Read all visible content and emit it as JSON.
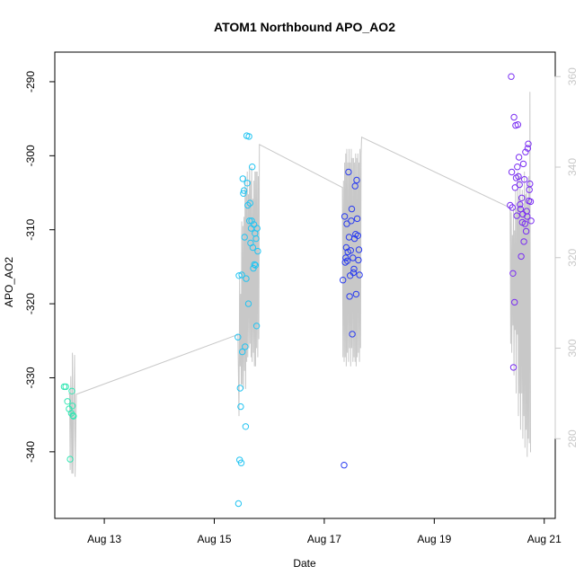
{
  "chart_data": {
    "type": "scatter",
    "title": "ATOM1 Northbound APO_AO2",
    "xlabel": "Date",
    "ylabel": "APO_AO2",
    "x_tick_labels": [
      "Aug 13",
      "Aug 15",
      "Aug 17",
      "Aug 19",
      "Aug 21"
    ],
    "x_tick_days": [
      13,
      15,
      17,
      19,
      21
    ],
    "xlim": [
      12.1,
      21.2
    ],
    "ylim": [
      -349.0,
      -286.0
    ],
    "y_ticks": [
      -340,
      -330,
      -320,
      -310,
      -300,
      -290
    ],
    "y2_label": "",
    "y2_ticks": [
      280,
      300,
      320,
      340,
      360
    ],
    "y2lim": [
      262.4,
      365.4
    ],
    "grid": false,
    "legend": "none",
    "colors": {
      "points": [
        "#33e6b3",
        "#22c4f2",
        "#2a3cf0",
        "#7a2ef2"
      ],
      "secondary_line": "#c8c8c8",
      "axis": "#000000",
      "right_axis": "#c8c8c8"
    },
    "series": [
      {
        "type": "scatter",
        "color_index": 0,
        "x": [
          12.27,
          12.3,
          12.33,
          12.36,
          12.38,
          12.4,
          12.41,
          12.42,
          12.43,
          12.44
        ],
        "y": [
          -331.2,
          -331.2,
          -333.2,
          -334.2,
          -341.0,
          -334.8,
          -331.8,
          -333.8,
          -335.1,
          -335.2
        ]
      },
      {
        "type": "scatter",
        "color_index": 1,
        "x": [
          15.43,
          15.44,
          15.45,
          15.46,
          15.47,
          15.48,
          15.49,
          15.5,
          15.51,
          15.52,
          15.53,
          15.54,
          15.55,
          15.56,
          15.57,
          15.58,
          15.59,
          15.6,
          15.61,
          15.62,
          15.63,
          15.64,
          15.65,
          15.66,
          15.67,
          15.68,
          15.69,
          15.7,
          15.71,
          15.72,
          15.73,
          15.74,
          15.75,
          15.76,
          15.77,
          15.78,
          15.79
        ],
        "y": [
          -324.5,
          -347.0,
          -316.2,
          -341.1,
          -331.4,
          -333.9,
          -341.5,
          -316.1,
          -326.5,
          -303.1,
          -305.1,
          -304.7,
          -311.0,
          -325.8,
          -336.6,
          -316.6,
          -297.3,
          -303.7,
          -306.7,
          -320.0,
          -297.4,
          -308.8,
          -306.4,
          -311.8,
          -309.8,
          -308.8,
          -301.5,
          -312.4,
          -315.2,
          -309.3,
          -314.7,
          -310.5,
          -314.8,
          -311.2,
          -323.0,
          -309.8,
          -312.9
        ]
      },
      {
        "type": "scatter",
        "color_index": 2,
        "x": [
          17.34,
          17.36,
          17.37,
          17.38,
          17.39,
          17.4,
          17.41,
          17.42,
          17.43,
          17.44,
          17.45,
          17.46,
          17.47,
          17.48,
          17.49,
          17.5,
          17.51,
          17.52,
          17.53,
          17.54,
          17.55,
          17.56,
          17.57,
          17.58,
          17.59,
          17.6,
          17.61,
          17.62,
          17.63,
          17.64
        ],
        "y": [
          -316.8,
          -341.8,
          -308.2,
          -314.4,
          -313.8,
          -312.4,
          -309.2,
          -314.2,
          -313.0,
          -302.2,
          -311.0,
          -319.0,
          -316.2,
          -312.8,
          -308.8,
          -307.2,
          -324.1,
          -313.8,
          -315.8,
          -315.3,
          -311.2,
          -304.1,
          -310.6,
          -318.7,
          -303.3,
          -308.5,
          -310.8,
          -314.1,
          -312.7,
          -316.1
        ]
      },
      {
        "type": "scatter",
        "color_index": 3,
        "x": [
          20.38,
          20.4,
          20.41,
          20.42,
          20.43,
          20.44,
          20.45,
          20.46,
          20.47,
          20.48,
          20.49,
          20.5,
          20.51,
          20.52,
          20.53,
          20.54,
          20.55,
          20.56,
          20.57,
          20.58,
          20.59,
          20.6,
          20.61,
          20.62,
          20.63,
          20.64,
          20.65,
          20.66,
          20.67,
          20.68,
          20.69,
          20.7,
          20.71,
          20.72,
          20.73,
          20.74,
          20.75,
          20.76
        ],
        "y": [
          -306.7,
          -289.3,
          -302.2,
          -307.0,
          -315.9,
          -328.6,
          -294.8,
          -319.8,
          -304.3,
          -295.9,
          -303.0,
          -308.1,
          -301.5,
          -295.8,
          -302.8,
          -300.2,
          -303.9,
          -306.6,
          -307.2,
          -313.6,
          -305.7,
          -309.0,
          -307.9,
          -301.1,
          -311.6,
          -303.2,
          -309.2,
          -299.5,
          -310.2,
          -307.5,
          -308.2,
          -299.0,
          -298.4,
          -306.1,
          -304.6,
          -303.8,
          -306.2,
          -308.8
        ]
      }
    ],
    "secondary_axis_series": {
      "type": "line",
      "x": [
        12.35,
        12.37,
        12.38,
        12.39,
        12.4,
        12.41,
        12.42,
        12.43,
        12.45,
        12.46,
        12.47,
        12.49,
        15.43,
        15.45,
        15.46,
        15.47,
        15.48,
        15.49,
        15.5,
        15.51,
        15.52,
        15.53,
        15.54,
        15.55,
        15.56,
        15.57,
        15.58,
        15.59,
        15.6,
        15.61,
        15.62,
        15.63,
        15.64,
        15.65,
        15.66,
        15.67,
        15.68,
        15.69,
        15.7,
        15.71,
        15.72,
        15.73,
        15.74,
        15.75,
        15.76,
        15.77,
        15.78,
        15.79,
        15.8,
        15.81,
        15.82,
        17.33,
        17.34,
        17.35,
        17.36,
        17.37,
        17.38,
        17.39,
        17.4,
        17.41,
        17.42,
        17.43,
        17.44,
        17.45,
        17.46,
        17.47,
        17.48,
        17.49,
        17.5,
        17.51,
        17.52,
        17.53,
        17.54,
        17.55,
        17.56,
        17.57,
        17.58,
        17.59,
        17.6,
        17.61,
        17.62,
        17.63,
        17.64,
        17.65,
        17.66,
        17.67,
        17.68,
        20.38,
        20.39,
        20.4,
        20.41,
        20.42,
        20.43,
        20.44,
        20.45,
        20.46,
        20.47,
        20.48,
        20.49,
        20.5,
        20.51,
        20.52,
        20.53,
        20.54,
        20.55,
        20.56,
        20.57,
        20.58,
        20.59,
        20.6,
        20.61,
        20.62,
        20.63,
        20.64,
        20.65,
        20.66,
        20.67,
        20.68,
        20.69,
        20.7,
        20.71,
        20.72,
        20.73,
        20.74,
        20.75
      ],
      "y": [
        289.9,
        289.9,
        273.1,
        293.8,
        284.0,
        272.3,
        299.0,
        272.3,
        289.8,
        298.5,
        271.6,
        289.8,
        303.0,
        285.0,
        316.0,
        296.0,
        312.0,
        292.0,
        328.0,
        292.0,
        327.0,
        291.0,
        329.0,
        295.0,
        338.0,
        291.0,
        335.0,
        297.0,
        339.0,
        298.0,
        334.0,
        300.0,
        340.0,
        301.0,
        337.0,
        298.0,
        340.0,
        297.0,
        333.0,
        299.0,
        337.0,
        296.0,
        339.0,
        296.0,
        339.0,
        300.0,
        339.0,
        298.0,
        338.0,
        302.0,
        345.0,
        335.5,
        298.0,
        337.0,
        297.0,
        341.0,
        298.0,
        343.0,
        296.0,
        344.0,
        299.0,
        341.0,
        297.0,
        344.0,
        300.0,
        341.0,
        296.0,
        344.0,
        300.0,
        342.0,
        297.0,
        342.0,
        298.0,
        341.0,
        297.0,
        343.0,
        296.0,
        342.0,
        298.0,
        343.0,
        299.0,
        341.0,
        297.0,
        344.0,
        300.0,
        343.0,
        346.6,
        331.0,
        301.0,
        330.0,
        299.0,
        325.0,
        305.0,
        331.0,
        294.0,
        326.0,
        304.0,
        335.0,
        290.0,
        331.0,
        303.0,
        339.0,
        285.0,
        333.0,
        290.0,
        338.0,
        282.0,
        332.0,
        290.0,
        335.0,
        280.0,
        331.0,
        285.0,
        339.0,
        278.0,
        334.0,
        282.0,
        336.0,
        276.0,
        332.0,
        280.0,
        338.0,
        279.0,
        356.6,
        277.0
      ]
    }
  }
}
